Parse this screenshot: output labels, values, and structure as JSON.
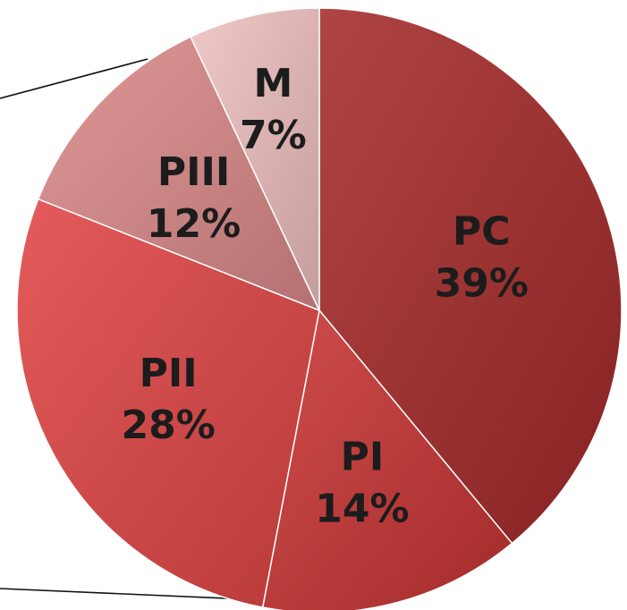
{
  "chart_data": {
    "type": "pie",
    "slices": [
      {
        "label": "PC",
        "value": 39,
        "value_label": "39%",
        "color": "#A52A2A"
      },
      {
        "label": "PI",
        "value": 14,
        "value_label": "14%",
        "color": "#C83534"
      },
      {
        "label": "PII",
        "value": 28,
        "value_label": "28%",
        "color": "#E04545"
      },
      {
        "label": "PIII",
        "value": 12,
        "value_label": "12%",
        "color": "#DC8A8A"
      },
      {
        "label": "M",
        "value": 7,
        "value_label": "7%",
        "color": "#EFC0C0"
      }
    ]
  }
}
